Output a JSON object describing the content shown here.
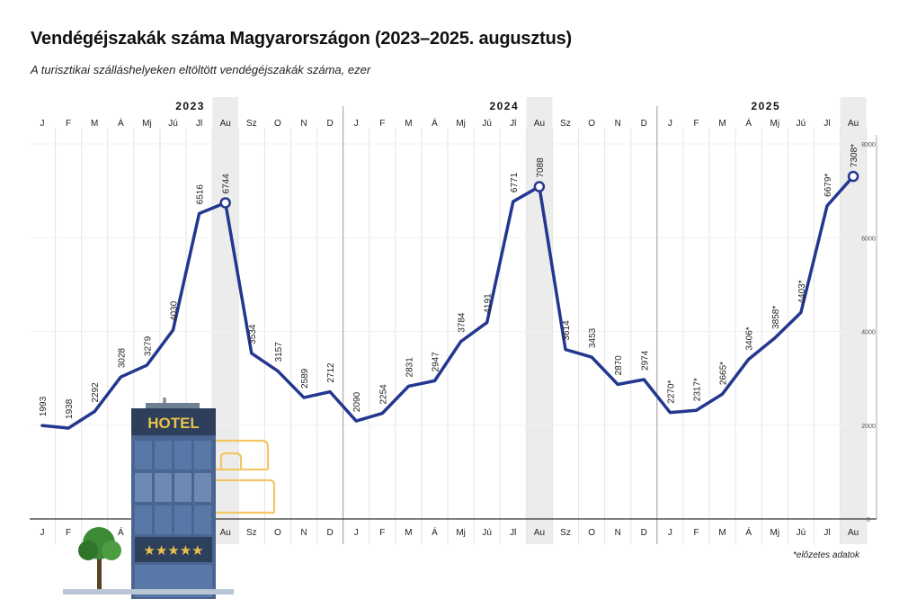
{
  "header": {
    "title": "Vendégéjszakák száma Magyarországon (2023–2025. augusztus)",
    "subtitle": "A turisztikai szálláshelyeken eltöltött vendégéjszakák száma, ezer"
  },
  "footnote": "*előzetes adatok",
  "illustration": {
    "hotel_sign": "HOTEL",
    "stars": "★★★★★",
    "icons": [
      "hotel-building-icon",
      "tree-icon",
      "bed-icon"
    ]
  },
  "colors": {
    "line": "#24378f",
    "highlight_column": "#ececec",
    "grid": "#e4e4e4",
    "sign_text": "#e8c24a",
    "bed": "#f1c765"
  },
  "chart_data": {
    "type": "line",
    "title": "Vendégéjszakák száma Magyarországon (2023–2025. augusztus)",
    "subtitle": "A turisztikai szálláshelyeken eltöltött vendégéjszakák száma, ezer",
    "years": [
      "2023",
      "2024",
      "2025"
    ],
    "months": [
      "J",
      "F",
      "M",
      "Á",
      "Mj",
      "Jú",
      "Jl",
      "Au",
      "Sz",
      "O",
      "N",
      "D",
      "J",
      "F",
      "M",
      "Á",
      "Mj",
      "Jú",
      "Jl",
      "Au",
      "Sz",
      "O",
      "N",
      "D",
      "J",
      "F",
      "M",
      "Á",
      "Mj",
      "Jú",
      "Jl",
      "Au"
    ],
    "values": [
      1993,
      1938,
      2292,
      3028,
      3279,
      4030,
      6516,
      6744,
      3534,
      3157,
      2589,
      2712,
      2090,
      2254,
      2831,
      2947,
      3784,
      4191,
      6771,
      7088,
      3614,
      3453,
      2870,
      2974,
      2270,
      2317,
      2665,
      3406,
      3858,
      4403,
      6679,
      7308
    ],
    "labels": [
      "1993",
      "1938",
      "2292",
      "3028",
      "3279",
      "4030",
      "6516",
      "6744",
      "3534",
      "3157",
      "2589",
      "2712",
      "2090",
      "2254",
      "2831",
      "2947",
      "3784",
      "4191",
      "6771",
      "7088",
      "3614",
      "3453",
      "2870",
      "2974",
      "2270*",
      "2317*",
      "2665*",
      "3406*",
      "3858*",
      "4403*",
      "6679*",
      "7308*"
    ],
    "highlighted_months": [
      "2023 Au",
      "2024 Au",
      "2025 Au"
    ],
    "yticks": [
      "0",
      "2000",
      "4000",
      "6000",
      "8000"
    ],
    "ylim": [
      0,
      8000
    ],
    "xlabel": "",
    "ylabel": "",
    "grid": true,
    "legend": "none"
  }
}
